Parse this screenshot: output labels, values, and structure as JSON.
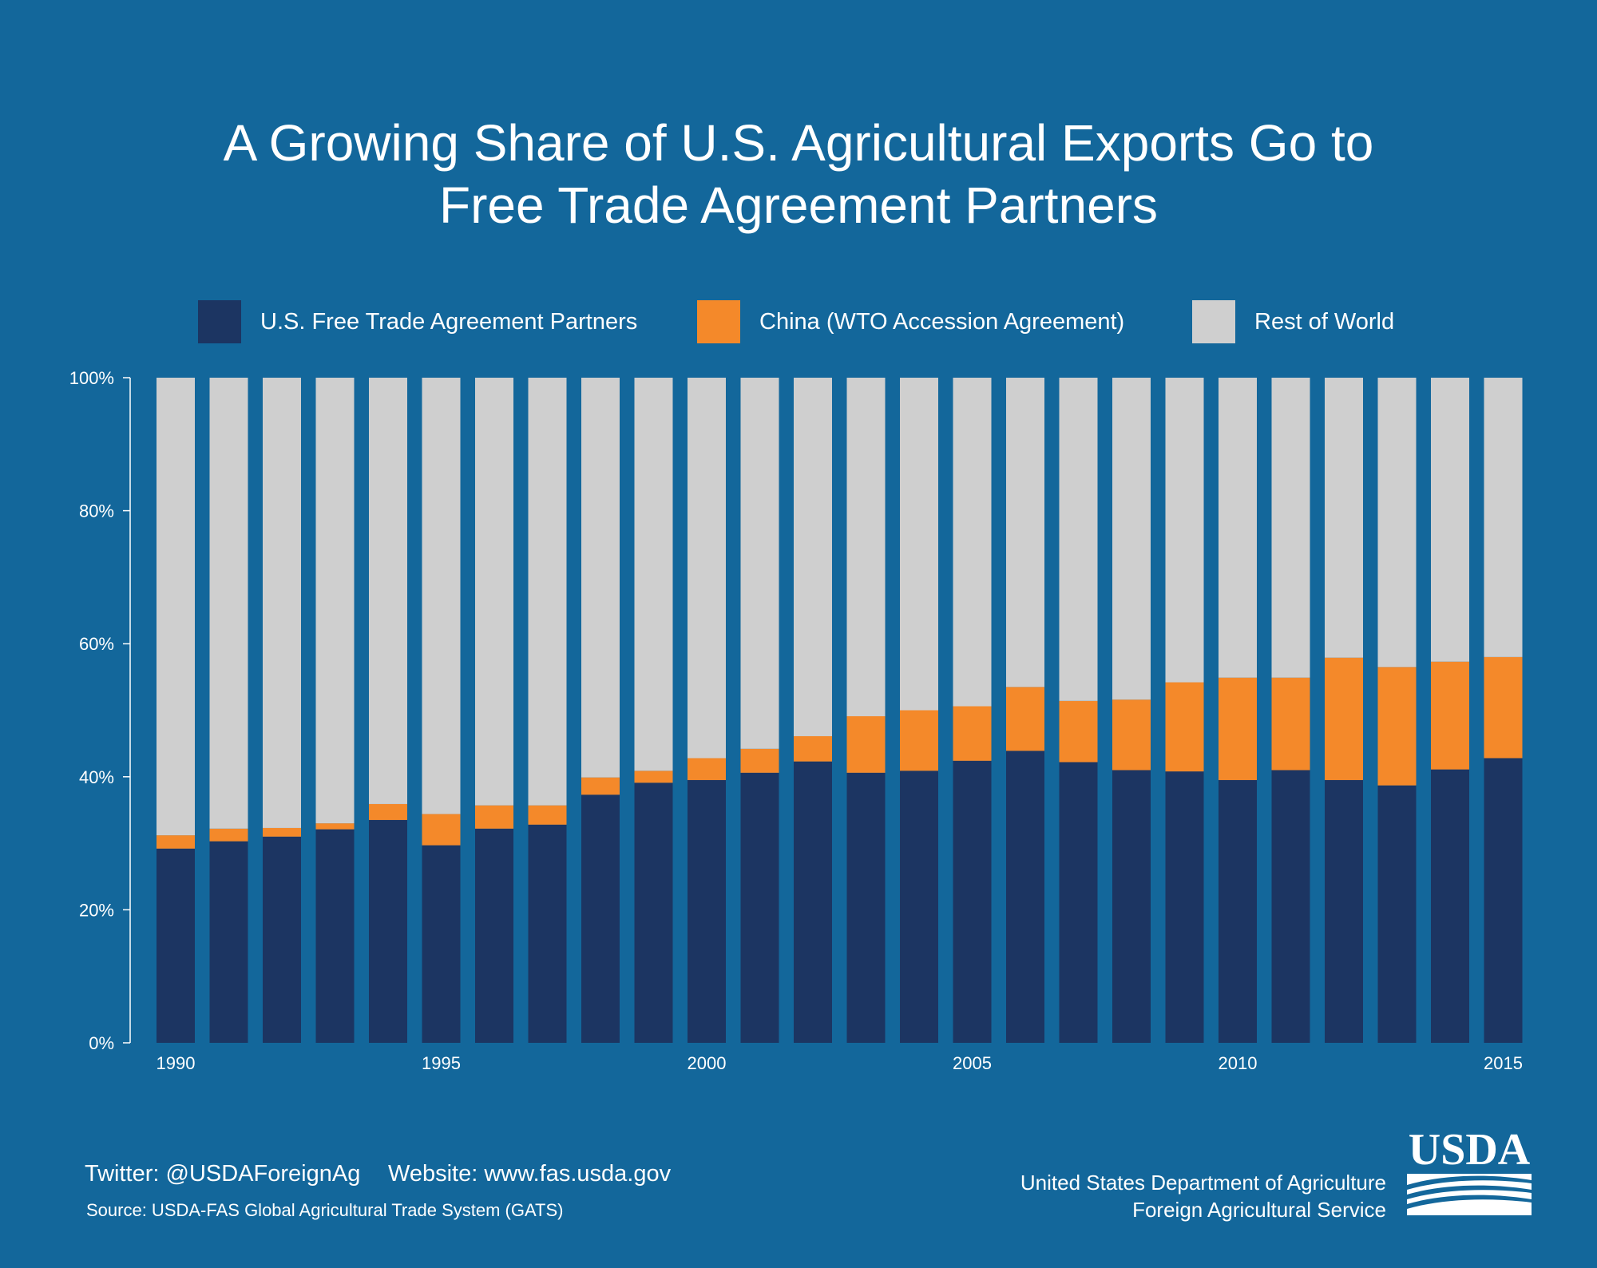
{
  "title_lines": [
    "A Growing Share of U.S. Agricultural Exports Go to",
    "Free Trade Agreement Partners"
  ],
  "colors": {
    "background": "#13679b",
    "fta": "#1c3562",
    "china": "#f4892a",
    "rest": "#cfcfcf",
    "text": "#ffffff"
  },
  "legend": [
    {
      "label": "U.S. Free Trade Agreement Partners",
      "color": "#1c3562"
    },
    {
      "label": "China (WTO Accession Agreement)",
      "color": "#f4892a"
    },
    {
      "label": "Rest of World",
      "color": "#cfcfcf"
    }
  ],
  "chart_data": {
    "type": "bar",
    "stacked": true,
    "title": "A Growing Share of U.S. Agricultural Exports Go to Free Trade Agreement Partners",
    "categories": [
      "1990",
      "1991",
      "1992",
      "1993",
      "1994",
      "1995",
      "1996",
      "1997",
      "1998",
      "1999",
      "2000",
      "2001",
      "2002",
      "2003",
      "2004",
      "2005",
      "2006",
      "2007",
      "2008",
      "2009",
      "2010",
      "2011",
      "2012",
      "2013",
      "2014",
      "2015"
    ],
    "x_tick_labels": [
      "1990",
      "1995",
      "2000",
      "2005",
      "2010",
      "2015"
    ],
    "y_tick_labels": [
      "0%",
      "20%",
      "40%",
      "60%",
      "80%",
      "100%"
    ],
    "ylim": [
      0,
      100
    ],
    "xlabel": "",
    "ylabel": "",
    "grid": false,
    "legend_position": "top",
    "series": [
      {
        "name": "U.S. Free Trade Agreement Partners",
        "color": "#1c3562",
        "values": [
          29.2,
          30.3,
          31.0,
          32.1,
          33.5,
          29.7,
          32.2,
          32.8,
          37.3,
          39.1,
          39.5,
          40.6,
          42.3,
          40.6,
          40.9,
          42.4,
          43.9,
          42.2,
          41.0,
          40.8,
          39.5,
          41.0,
          39.5,
          38.7,
          41.1,
          42.8
        ]
      },
      {
        "name": "China (WTO Accession Agreement)",
        "color": "#f4892a",
        "values": [
          2.0,
          1.9,
          1.3,
          0.9,
          2.4,
          4.7,
          3.5,
          2.9,
          2.6,
          1.8,
          3.3,
          3.6,
          3.8,
          8.5,
          9.1,
          8.2,
          9.6,
          9.2,
          10.6,
          13.4,
          15.4,
          13.9,
          18.4,
          17.8,
          16.2,
          15.2
        ]
      },
      {
        "name": "Rest of World",
        "color": "#cfcfcf",
        "values": [
          68.8,
          67.8,
          67.7,
          67.0,
          64.1,
          65.6,
          64.3,
          64.3,
          60.1,
          59.1,
          57.2,
          55.8,
          53.9,
          50.9,
          50.0,
          49.4,
          46.5,
          48.6,
          48.4,
          45.8,
          45.1,
          45.1,
          42.1,
          43.5,
          42.7,
          42.0
        ]
      }
    ]
  },
  "footer": {
    "twitter": "Twitter: @USDAForeignAg",
    "website": "Website: www.fas.usda.gov",
    "source": "Source: USDA-FAS Global Agricultural Trade System (GATS)",
    "org_line1": "United States Department of Agriculture",
    "org_line2": "Foreign Agricultural Service",
    "logo_text": "USDA"
  }
}
